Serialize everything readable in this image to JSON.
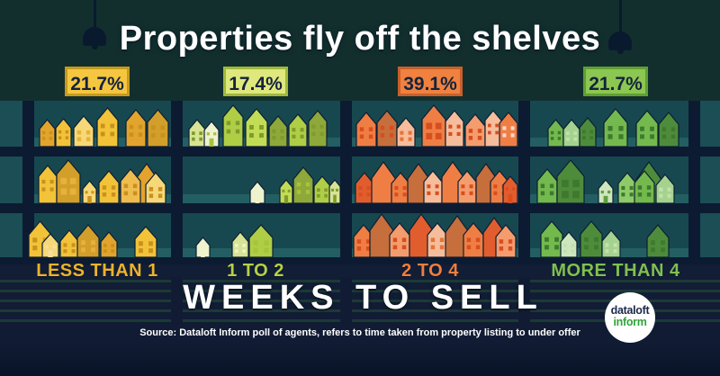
{
  "title": "Properties fly off the shelves",
  "footer": {
    "heading": "WEEKS TO SELL",
    "source": "Source: Dataloft Inform poll of agents, refers to time taken from property listing to under offer"
  },
  "logo": {
    "line1": "dataloft",
    "line2": "inform"
  },
  "colors": {
    "background_top": "#122F2E",
    "background_bottom": "#111C34",
    "backboard": "#174850",
    "shelf_board": "#0C1B31",
    "house_outline": "#0D1E33",
    "stripe": "#1C3A35",
    "title_text": "#FFFFFF"
  },
  "columns": [
    {
      "key": "less-than-1",
      "badge": "21.7%",
      "badge_bg": "#F5C640",
      "badge_border": "#C89A1B",
      "label": "LESS THAN 1",
      "label_color": "#ECB32B",
      "palette": {
        "body": [
          "#F2C338",
          "#E2A42C",
          "#F6D878",
          "#D29F2A",
          "#EFBC4E"
        ],
        "win": [
          "#C9911F",
          "#F7E09A",
          "#E8B23A"
        ]
      },
      "rows": [
        [
          [
            14,
            17,
            30,
            1,
            0,
            0
          ],
          [
            32,
            17,
            31,
            0,
            0,
            0
          ],
          [
            52,
            22,
            34,
            2,
            2,
            0
          ],
          [
            78,
            23,
            43,
            0,
            0,
            0
          ],
          [
            110,
            22,
            41,
            1,
            0,
            0
          ],
          [
            134,
            23,
            41,
            3,
            0,
            0
          ]
        ],
        [
          [
            13,
            20,
            42,
            0,
            0,
            0
          ],
          [
            33,
            26,
            48,
            3,
            2,
            3
          ],
          [
            62,
            15,
            25,
            2,
            0,
            4
          ],
          [
            80,
            22,
            36,
            0,
            0,
            0
          ],
          [
            120,
            26,
            44,
            1,
            0,
            2
          ],
          [
            104,
            22,
            38,
            4,
            0,
            0
          ],
          [
            132,
            22,
            34,
            2,
            0,
            0
          ]
        ],
        [
          [
            2,
            25,
            40,
            0,
            0,
            0
          ],
          [
            17,
            18,
            26,
            2,
            1,
            4
          ],
          [
            37,
            20,
            30,
            0,
            0,
            0
          ],
          [
            56,
            24,
            36,
            3,
            2,
            0
          ],
          [
            82,
            18,
            28,
            1,
            0,
            0
          ],
          [
            120,
            24,
            34,
            0,
            0,
            0
          ]
        ]
      ]
    },
    {
      "key": "1-to-2",
      "badge": "17.4%",
      "badge_bg": "#DFE87D",
      "badge_border": "#9FB93B",
      "label": "1 TO 2",
      "label_color": "#B5D147",
      "palette": {
        "body": [
          "#AFCE45",
          "#D8E494",
          "#8EA839",
          "#C3DC55",
          "#EDF2CF"
        ],
        "win": [
          "#7E9B2D",
          "#EFF4C6",
          "#A6C33C"
        ]
      },
      "rows": [
        [
          [
            7,
            18,
            30,
            1,
            0,
            0
          ],
          [
            24,
            16,
            28,
            4,
            2,
            4
          ],
          [
            45,
            22,
            46,
            0,
            0,
            0
          ],
          [
            70,
            24,
            42,
            3,
            0,
            0
          ],
          [
            96,
            20,
            34,
            2,
            0,
            0
          ],
          [
            118,
            20,
            36,
            0,
            0,
            0
          ],
          [
            140,
            20,
            40,
            2,
            0,
            0
          ]
        ],
        [
          [
            75,
            16,
            24,
            4,
            1,
            4
          ],
          [
            108,
            14,
            26,
            3,
            0,
            4
          ],
          [
            123,
            22,
            40,
            2,
            2,
            0
          ],
          [
            146,
            18,
            30,
            0,
            0,
            0
          ],
          [
            163,
            12,
            26,
            1,
            0,
            4
          ]
        ],
        [
          [
            15,
            15,
            22,
            4,
            1,
            4
          ],
          [
            55,
            18,
            28,
            1,
            1,
            0
          ],
          [
            74,
            26,
            36,
            0,
            2,
            0
          ]
        ]
      ]
    },
    {
      "key": "2-to-4",
      "badge": "39.1%",
      "badge_bg": "#F0813F",
      "badge_border": "#C9602A",
      "label": "2 TO 4",
      "label_color": "#EE7E3E",
      "palette": {
        "body": [
          "#EF7E45",
          "#E25D2E",
          "#F5BD9C",
          "#C66E3C",
          "#F49C6D"
        ],
        "win": [
          "#D94E1E",
          "#FAD9C4",
          "#E87236"
        ]
      },
      "rows": [
        [
          [
            5,
            22,
            38,
            0,
            0,
            0
          ],
          [
            28,
            22,
            40,
            3,
            0,
            0
          ],
          [
            50,
            20,
            32,
            2,
            2,
            0
          ],
          [
            78,
            26,
            46,
            0,
            0,
            3
          ],
          [
            104,
            20,
            40,
            2,
            0,
            0
          ],
          [
            126,
            22,
            36,
            4,
            0,
            0
          ],
          [
            148,
            18,
            40,
            2,
            0,
            0
          ],
          [
            164,
            20,
            38,
            0,
            1,
            0
          ]
        ],
        [
          [
            4,
            20,
            34,
            1,
            0,
            0
          ],
          [
            22,
            26,
            46,
            0,
            0,
            2
          ],
          [
            44,
            20,
            34,
            0,
            0,
            0
          ],
          [
            62,
            24,
            44,
            3,
            0,
            2
          ],
          [
            80,
            20,
            36,
            2,
            0,
            0
          ],
          [
            100,
            24,
            46,
            0,
            0,
            2
          ],
          [
            118,
            20,
            36,
            4,
            0,
            0
          ],
          [
            138,
            22,
            44,
            3,
            0,
            2
          ],
          [
            154,
            20,
            36,
            0,
            0,
            0
          ],
          [
            168,
            16,
            30,
            1,
            0,
            4
          ]
        ],
        [
          [
            2,
            22,
            36,
            0,
            0,
            0
          ],
          [
            20,
            26,
            48,
            3,
            0,
            2
          ],
          [
            42,
            22,
            38,
            4,
            0,
            0
          ],
          [
            64,
            26,
            48,
            1,
            0,
            2
          ],
          [
            84,
            22,
            38,
            2,
            2,
            0
          ],
          [
            104,
            26,
            46,
            3,
            0,
            2
          ],
          [
            124,
            22,
            38,
            0,
            0,
            0
          ],
          [
            146,
            24,
            44,
            1,
            0,
            2
          ],
          [
            160,
            22,
            36,
            4,
            0,
            0
          ]
        ]
      ]
    },
    {
      "key": "more-than-4",
      "badge": "21.7%",
      "badge_bg": "#8CC751",
      "badge_border": "#5FA032",
      "label": "MORE THAN 4",
      "label_color": "#7FC04F",
      "palette": {
        "body": [
          "#74B94E",
          "#A6D28F",
          "#4E8C3B",
          "#8ECB68",
          "#CFE7BE"
        ],
        "win": [
          "#3E7A2D",
          "#C2E2AC",
          "#5C9F3E"
        ]
      },
      "rows": [
        [
          [
            20,
            17,
            30,
            0,
            0,
            0
          ],
          [
            37,
            18,
            30,
            1,
            1,
            0
          ],
          [
            55,
            18,
            32,
            2,
            0,
            0
          ],
          [
            82,
            26,
            42,
            0,
            0,
            0
          ],
          [
            118,
            24,
            40,
            0,
            0,
            0
          ],
          [
            143,
            22,
            38,
            2,
            0,
            0
          ]
        ],
        [
          [
            8,
            22,
            38,
            0,
            0,
            0
          ],
          [
            30,
            30,
            48,
            2,
            0,
            3
          ],
          [
            76,
            16,
            26,
            4,
            2,
            4
          ],
          [
            98,
            20,
            34,
            3,
            0,
            0
          ],
          [
            118,
            28,
            46,
            2,
            0,
            2
          ],
          [
            116,
            22,
            36,
            0,
            0,
            0
          ],
          [
            140,
            20,
            32,
            1,
            1,
            0
          ]
        ],
        [
          [
            12,
            24,
            40,
            0,
            0,
            0
          ],
          [
            34,
            18,
            28,
            4,
            1,
            0
          ],
          [
            56,
            24,
            40,
            2,
            0,
            0
          ],
          [
            80,
            20,
            30,
            1,
            1,
            0
          ],
          [
            130,
            24,
            36,
            2,
            0,
            0
          ]
        ]
      ]
    }
  ],
  "chart_data": {
    "type": "bar",
    "style": "pictogram (houses on shop shelves)",
    "title": "Properties fly off the shelves",
    "categories": [
      "Less than 1",
      "1 to 2",
      "2 to 4",
      "More than 4"
    ],
    "values": [
      21.7,
      17.4,
      39.1,
      21.7
    ],
    "unit": "%",
    "xlabel": "WEEKS TO SELL",
    "category_colors": [
      "#F5C640",
      "#DFE87D",
      "#F0813F",
      "#8CC751"
    ],
    "source": "Source: Dataloft Inform poll of agents, refers to time taken from property listing to under offer"
  }
}
